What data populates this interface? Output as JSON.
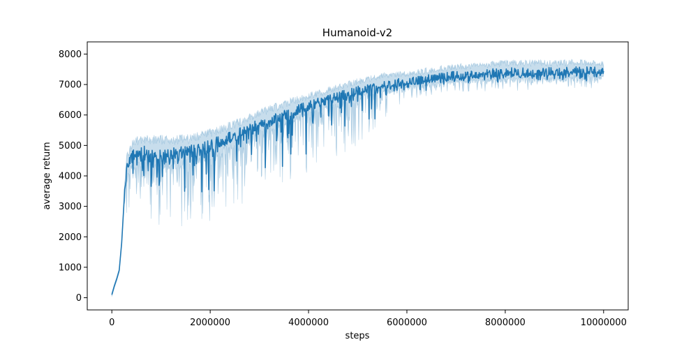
{
  "chart_data": {
    "type": "line",
    "title": "Humanoid-v2",
    "xlabel": "steps",
    "ylabel": "average return",
    "xlim": [
      -500000,
      10500000
    ],
    "ylim": [
      -400,
      8400
    ],
    "xticks": [
      0,
      2000000,
      4000000,
      6000000,
      8000000,
      10000000
    ],
    "xtick_labels": [
      "0",
      "2000000",
      "4000000",
      "6000000",
      "8000000",
      "10000000"
    ],
    "yticks": [
      0,
      1000,
      2000,
      3000,
      4000,
      5000,
      6000,
      7000,
      8000
    ],
    "ytick_labels": [
      "0",
      "1000",
      "2000",
      "3000",
      "4000",
      "5000",
      "6000",
      "7000",
      "8000"
    ],
    "grid": false,
    "legend": "none",
    "series": [
      {
        "color": "#1f77b4",
        "band_color": "#1f77b4",
        "band_opacity": 0.25,
        "x": [
          0,
          50000,
          100000,
          150000,
          200000,
          250000,
          300000,
          400000,
          500000,
          700000,
          1000000,
          1500000,
          2000000,
          2500000,
          3000000,
          3500000,
          4000000,
          4500000,
          5000000,
          5500000,
          6000000,
          6500000,
          7000000,
          7500000,
          8000000,
          8500000,
          9000000,
          9500000,
          10000000
        ],
        "mean": [
          100,
          380,
          620,
          900,
          1800,
          3200,
          4200,
          4600,
          4750,
          4800,
          4750,
          4750,
          5000,
          5300,
          5700,
          6000,
          6300,
          6550,
          6800,
          7000,
          7100,
          7200,
          7300,
          7350,
          7400,
          7400,
          7420,
          7450,
          7450
        ],
        "amp_high": [
          100,
          200,
          300,
          350,
          400,
          450,
          500,
          500,
          500,
          500,
          550,
          550,
          500,
          500,
          450,
          450,
          400,
          400,
          380,
          350,
          320,
          350,
          350,
          350,
          380,
          380,
          350,
          350,
          300
        ],
        "amp_low": [
          80,
          150,
          200,
          300,
          600,
          800,
          1200,
          1500,
          1700,
          1900,
          2000,
          2100,
          2100,
          2000,
          1900,
          1900,
          1800,
          1700,
          1500,
          1000,
          500,
          500,
          500,
          500,
          500,
          500,
          500,
          500,
          500
        ]
      }
    ]
  }
}
